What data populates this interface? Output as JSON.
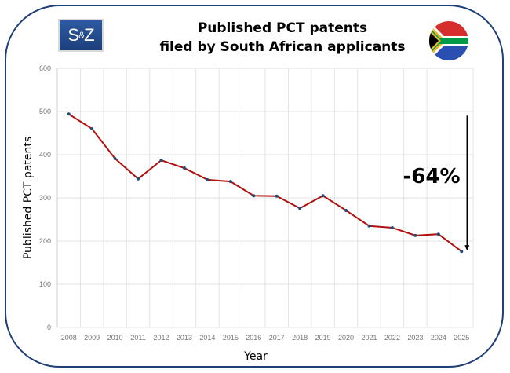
{
  "logo": {
    "text_left": "S",
    "text_amp": "&",
    "text_right": "Z"
  },
  "title_line1": "Published PCT patents",
  "title_line2": "filed by South African applicants",
  "flag": "south-africa-flag",
  "chart_data": {
    "type": "line",
    "title": "Published PCT patents filed by South African applicants",
    "xlabel": "Year",
    "ylabel": "Published PCT patents",
    "ylim": [
      0,
      600
    ],
    "yticks": [
      0,
      100,
      200,
      300,
      400,
      500,
      600
    ],
    "grid": true,
    "categories": [
      "2008",
      "2009",
      "2010",
      "2011",
      "2012",
      "2013",
      "2014",
      "2015",
      "2016",
      "2017",
      "2018",
      "2019",
      "2020",
      "2021",
      "2022",
      "2023",
      "2024",
      "2025"
    ],
    "series": [
      {
        "name": "Published PCT patents",
        "color": "#b01010",
        "marker_color": "#1f4e79",
        "values": [
          494,
          460,
          391,
          344,
          387,
          369,
          342,
          338,
          305,
          304,
          276,
          305,
          271,
          235,
          231,
          213,
          216,
          176
        ]
      }
    ],
    "annotation": {
      "text": "-64%",
      "arrow": "down",
      "from_value": 494,
      "to_category": "2025",
      "to_value": 176
    }
  }
}
